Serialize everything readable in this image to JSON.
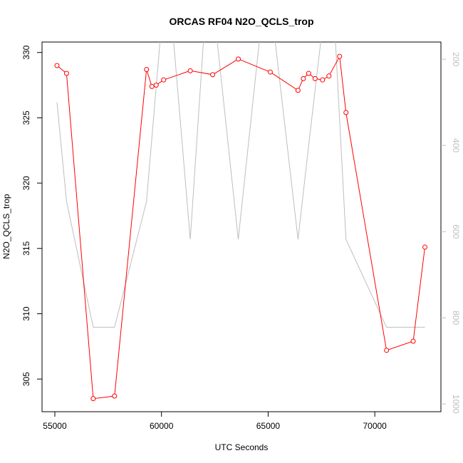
{
  "chart_data": {
    "type": "line",
    "title": "ORCAS RF04 N2O_QCLS_trop",
    "xlabel": "UTC Seconds",
    "ylabel": "N2O_QCLS_trop",
    "xlim": [
      54400,
      73100
    ],
    "ylim": [
      302.5,
      330.8
    ],
    "y2lim": [
      1018,
      160
    ],
    "x_ticks": [
      {
        "value": 55000,
        "label": "55000"
      },
      {
        "value": 60000,
        "label": "60000"
      },
      {
        "value": 65000,
        "label": "65000"
      },
      {
        "value": 70000,
        "label": "70000"
      }
    ],
    "y_ticks": [
      {
        "value": 305,
        "label": "305"
      },
      {
        "value": 310,
        "label": "310"
      },
      {
        "value": 315,
        "label": "315"
      },
      {
        "value": 320,
        "label": "320"
      },
      {
        "value": 325,
        "label": "325"
      },
      {
        "value": 330,
        "label": "330"
      }
    ],
    "y2_ticks": [
      {
        "value": 200,
        "label": "200"
      },
      {
        "value": 400,
        "label": "400"
      },
      {
        "value": 600,
        "label": "600"
      },
      {
        "value": 800,
        "label": "800"
      },
      {
        "value": 1000,
        "label": "1000"
      }
    ],
    "series": [
      {
        "color": "#ff0000",
        "axis": "left",
        "markers": true,
        "points": [
          [
            55100,
            329.0
          ],
          [
            55550,
            328.4
          ],
          [
            56800,
            303.5
          ],
          [
            57800,
            303.7
          ],
          [
            59300,
            328.7
          ],
          [
            59550,
            327.4
          ],
          [
            59750,
            327.5
          ],
          [
            60100,
            327.9
          ],
          [
            61350,
            328.6
          ],
          [
            62400,
            328.3
          ],
          [
            63600,
            329.5
          ],
          [
            65100,
            328.5
          ],
          [
            66400,
            327.1
          ],
          [
            66650,
            328.0
          ],
          [
            66900,
            328.4
          ],
          [
            67200,
            328.0
          ],
          [
            67550,
            327.9
          ],
          [
            67850,
            328.2
          ],
          [
            68350,
            329.7
          ],
          [
            68650,
            325.4
          ],
          [
            70550,
            307.2
          ],
          [
            71800,
            307.9
          ],
          [
            72350,
            315.1
          ]
        ]
      },
      {
        "color": "#bebebe",
        "axis": "right",
        "markers": false,
        "points": [
          [
            55100,
            300
          ],
          [
            55550,
            530
          ],
          [
            56800,
            822
          ],
          [
            57800,
            822
          ],
          [
            59300,
            530
          ],
          [
            60100,
            60
          ],
          [
            60400,
            60
          ],
          [
            61350,
            618
          ],
          [
            62100,
            60
          ],
          [
            62400,
            60
          ],
          [
            63600,
            618
          ],
          [
            64800,
            60
          ],
          [
            65100,
            60
          ],
          [
            66400,
            618
          ],
          [
            66900,
            400
          ],
          [
            67700,
            60
          ],
          [
            68050,
            60
          ],
          [
            68650,
            618
          ],
          [
            70550,
            822
          ],
          [
            72350,
            822
          ]
        ]
      }
    ]
  }
}
